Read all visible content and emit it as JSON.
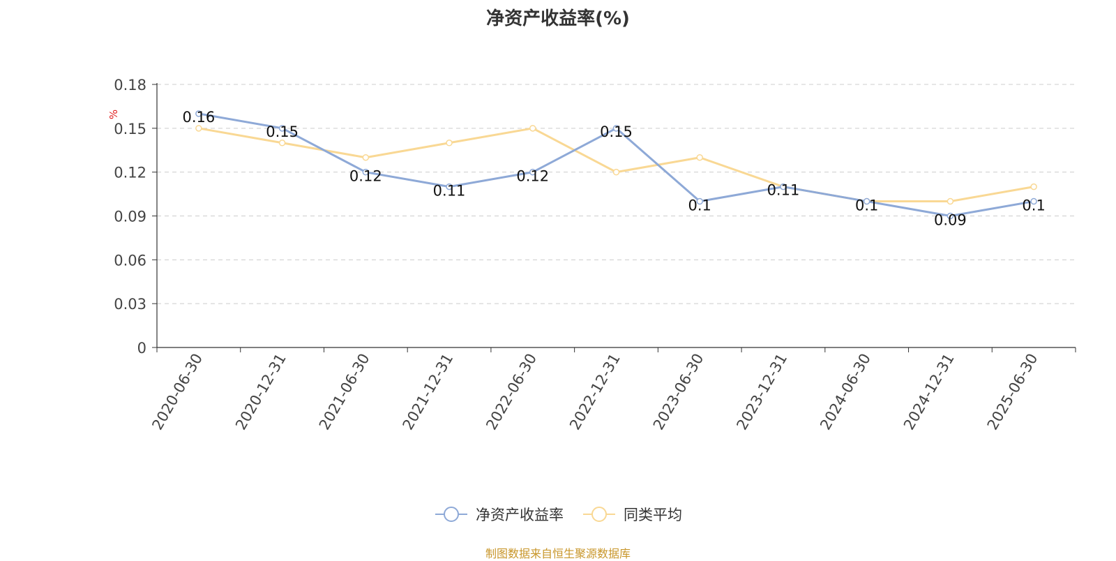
{
  "title": "净资产收益率(%)",
  "source_note": "制图数据来自恒生聚源数据库",
  "chart_data": {
    "type": "line",
    "title": "净资产收益率(%)",
    "ylabel": "%",
    "ylim": [
      0,
      0.18
    ],
    "yticks": [
      "0",
      "0.03",
      "0.06",
      "0.09",
      "0.12",
      "0.15",
      "0.18"
    ],
    "grid": true,
    "legend_position": "bottom",
    "categories": [
      "2020-06-30",
      "2020-12-31",
      "2021-06-30",
      "2021-12-31",
      "2022-06-30",
      "2022-12-31",
      "2023-06-30",
      "2023-12-31",
      "2024-06-30",
      "2024-12-31",
      "2025-06-30"
    ],
    "series": [
      {
        "name": "净资产收益率",
        "color": "#8ea9d7",
        "labels": true,
        "values": [
          0.16,
          0.15,
          0.12,
          0.11,
          0.12,
          0.15,
          0.1,
          0.11,
          0.1,
          0.09,
          0.1
        ]
      },
      {
        "name": "同类平均",
        "color": "#f9d894",
        "labels": false,
        "values": [
          0.15,
          0.14,
          0.13,
          0.14,
          0.15,
          0.12,
          0.13,
          0.11,
          0.1,
          0.1,
          0.11
        ]
      }
    ]
  }
}
